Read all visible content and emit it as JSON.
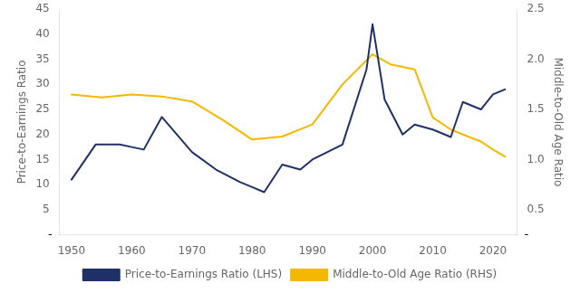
{
  "chart_data": {
    "type": "line",
    "ylabel": "Price-to-Earnings Ratio",
    "y2label": "Middle-to-Old Age Ratio",
    "series": [
      {
        "name": "Price-to-Earnings Ratio (LHS)",
        "color": "#1f3268",
        "axis": "y",
        "x": [
          1950,
          1954,
          1958,
          1960,
          1962,
          1965,
          1970,
          1974,
          1978,
          1980,
          1982,
          1985,
          1988,
          1990,
          1995,
          1999,
          2000,
          2002,
          2005,
          2007,
          2010,
          2013,
          2015,
          2018,
          2020,
          2022
        ],
        "values": [
          11.0,
          18.0,
          18.0,
          17.5,
          17.0,
          23.5,
          16.5,
          13.0,
          10.5,
          9.5,
          8.5,
          14.0,
          13.0,
          15.0,
          18.0,
          33.0,
          42.0,
          27.0,
          20.0,
          22.0,
          21.0,
          19.5,
          26.5,
          25.0,
          28.0,
          29.0
        ]
      },
      {
        "name": "Middle-to-Old Age Ratio (RHS)",
        "color": "#f5b800",
        "axis": "y2",
        "x": [
          1950,
          1955,
          1960,
          1965,
          1970,
          1975,
          1980,
          1985,
          1990,
          1995,
          2000,
          2003,
          2007,
          2010,
          2013,
          2015,
          2018,
          2020,
          2022
        ],
        "values": [
          1.65,
          1.62,
          1.65,
          1.63,
          1.58,
          1.4,
          1.2,
          1.23,
          1.35,
          1.75,
          2.05,
          1.95,
          1.9,
          1.42,
          1.3,
          1.25,
          1.18,
          1.1,
          1.03
        ]
      }
    ],
    "xlim": [
      1948,
      2024
    ],
    "xticks": [
      1950,
      1960,
      1970,
      1980,
      1990,
      2000,
      2010,
      2020
    ],
    "ylim": [
      0,
      45
    ],
    "yticks": [
      5,
      10,
      15,
      20,
      25,
      30,
      35,
      40,
      45
    ],
    "y2lim": [
      0.25,
      2.5
    ],
    "y2ticks": [
      0.5,
      {
        "value": 1.0,
        "label": "1.0"
      },
      1.5,
      {
        "value": 2.0,
        "label": "2.0"
      },
      2.5
    ],
    "annotations": [
      {
        "text": "-",
        "x": 1948,
        "y": 0,
        "axis": "y"
      },
      {
        "text": "-",
        "x": 2024,
        "y": 0.25,
        "axis": "y2"
      }
    ],
    "grid": false,
    "legend": "bottom"
  }
}
